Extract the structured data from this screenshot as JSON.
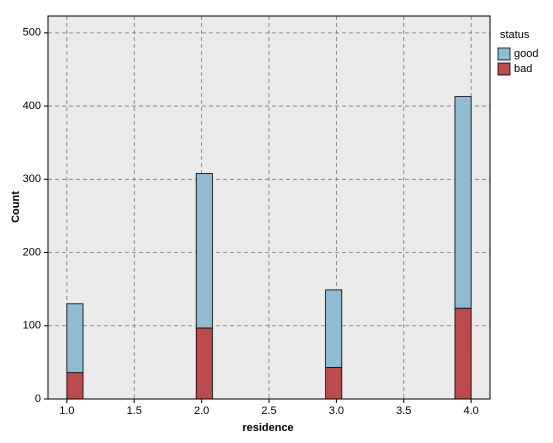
{
  "chart_data": {
    "type": "histogram",
    "x_label": "residence",
    "y_label": "Count",
    "legend_title": "status",
    "legend": "right",
    "bins": [
      1,
      1.12,
      1.24,
      1.36,
      1.48,
      1.6,
      1.72,
      1.84,
      1.96,
      2.08,
      2.2,
      2.32,
      2.44,
      2.56,
      2.68,
      2.8,
      2.92,
      3.04,
      3.16,
      3.28,
      3.4,
      3.52,
      3.64,
      3.76,
      3.88,
      4
    ],
    "series": [
      {
        "name": "good",
        "color": "#8fbcd3",
        "values": [
          94,
          0,
          0,
          0,
          0,
          0,
          0,
          0,
          211,
          0,
          0,
          0,
          0,
          0,
          0,
          0,
          106,
          0,
          0,
          0,
          0,
          0,
          0,
          0,
          289
        ]
      },
      {
        "name": "bad",
        "color": "#bd4a4d",
        "values": [
          36,
          0,
          0,
          0,
          0,
          0,
          0,
          0,
          97,
          0,
          0,
          0,
          0,
          0,
          0,
          0,
          43,
          0,
          0,
          0,
          0,
          0,
          0,
          0,
          124
        ]
      }
    ],
    "stacked": true,
    "xlim": [
      0.86,
      4.14
    ],
    "xticks": [
      {
        "value": 1,
        "label": "1.0"
      },
      {
        "value": 1.5,
        "label": "1.5"
      },
      {
        "value": 2,
        "label": "2.0"
      },
      {
        "value": 2.5,
        "label": "2.5"
      },
      {
        "value": 3,
        "label": "3.0"
      },
      {
        "value": 3.5,
        "label": "3.5"
      },
      {
        "value": 4,
        "label": "4.0"
      }
    ],
    "ylim": [
      0,
      523
    ],
    "yticks": [
      0,
      100,
      200,
      300,
      400,
      500
    ],
    "grid": true
  }
}
